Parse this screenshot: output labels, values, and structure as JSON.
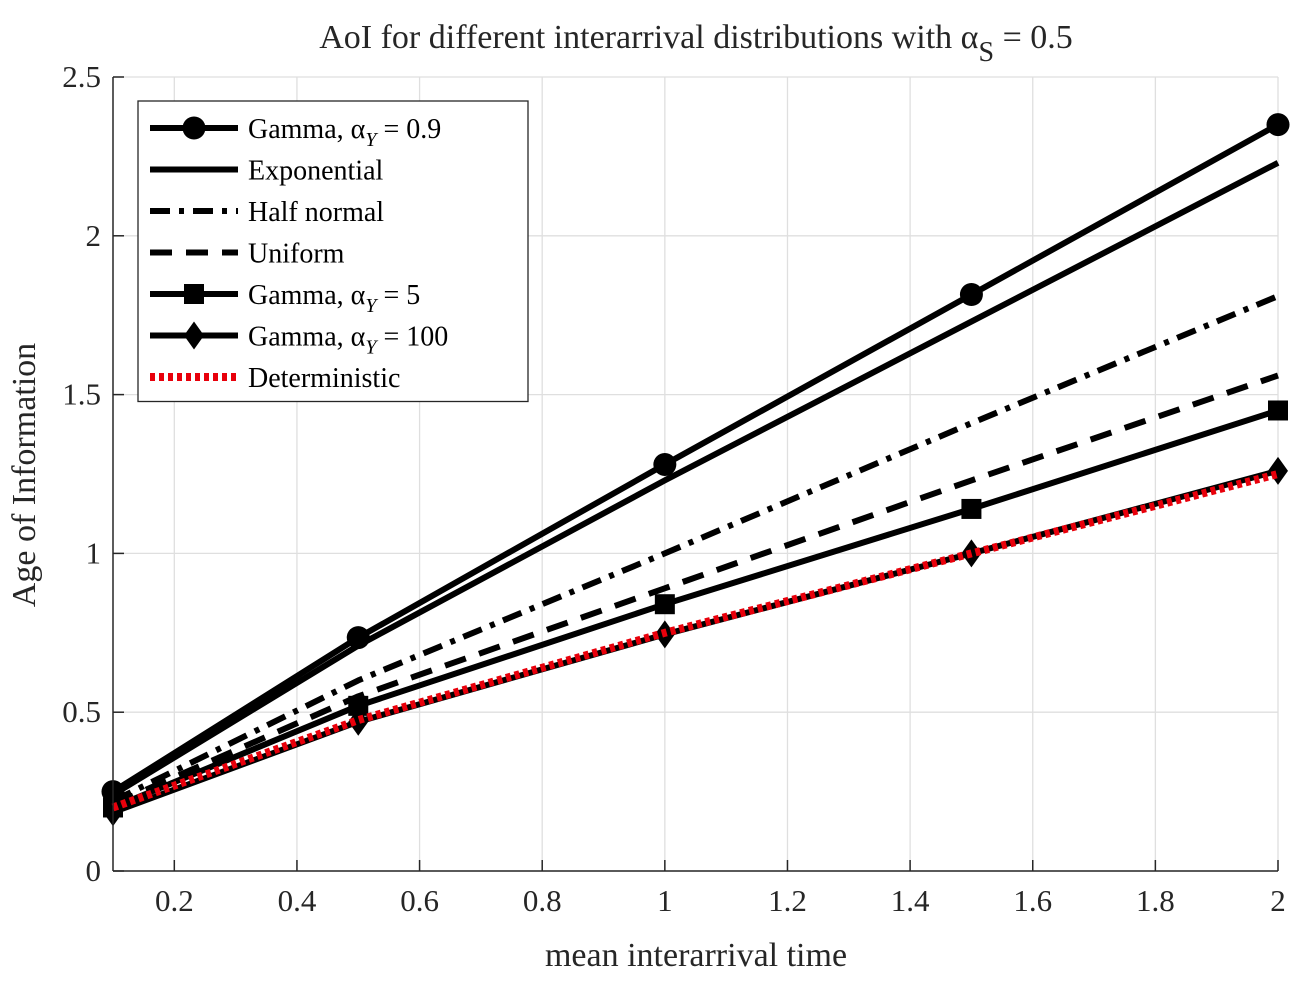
{
  "chart_data": {
    "type": "line",
    "title": "AoI for different interarrival distributions with α",
    "title_subscript": "S",
    "title_suffix": " = 0.5",
    "xlabel": "mean interarrival time",
    "ylabel": "Age of Information",
    "xlim": [
      0.1,
      2
    ],
    "ylim": [
      0,
      2.5
    ],
    "xticks": [
      0.2,
      0.4,
      0.6,
      0.8,
      1,
      1.2,
      1.4,
      1.6,
      1.8,
      2
    ],
    "xtick_labels": [
      "0.2",
      "0.4",
      "0.6",
      "0.8",
      "1",
      "1.2",
      "1.4",
      "1.6",
      "1.8",
      "2"
    ],
    "yticks": [
      0,
      0.5,
      1,
      1.5,
      2,
      2.5
    ],
    "ytick_labels": [
      "0",
      "0.5",
      "1",
      "1.5",
      "2",
      "2.5"
    ],
    "grid": true,
    "legend_position": "top-left",
    "x": [
      0.1,
      0.5,
      1,
      1.5,
      2
    ],
    "series": [
      {
        "name": "Gamma, α",
        "name_sub": "Y",
        "name_suffix": " = 0.9",
        "values": [
          0.25,
          0.735,
          1.28,
          1.815,
          2.35
        ],
        "style": "solid",
        "marker": "circle",
        "color": "#000000"
      },
      {
        "name": "Exponential",
        "values": [
          0.24,
          0.71,
          1.23,
          1.73,
          2.23
        ],
        "style": "solid",
        "marker": "none",
        "color": "#000000"
      },
      {
        "name": "Half normal",
        "values": [
          0.22,
          0.6,
          1.0,
          1.41,
          1.81
        ],
        "style": "dashdot",
        "marker": "none",
        "color": "#000000"
      },
      {
        "name": "Uniform",
        "values": [
          0.21,
          0.55,
          0.89,
          1.23,
          1.56
        ],
        "style": "dashed",
        "marker": "none",
        "color": "#000000"
      },
      {
        "name": "Gamma, α",
        "name_sub": "Y",
        "name_suffix": " = 5",
        "values": [
          0.2,
          0.52,
          0.84,
          1.14,
          1.45
        ],
        "style": "solid",
        "marker": "square",
        "color": "#000000"
      },
      {
        "name": "Gamma, α",
        "name_sub": "Y",
        "name_suffix": " = 100",
        "values": [
          0.185,
          0.47,
          0.745,
          1.0,
          1.26
        ],
        "style": "solid",
        "marker": "diamond",
        "color": "#000000"
      },
      {
        "name": "Deterministic",
        "values": [
          0.2,
          0.475,
          0.75,
          1.0,
          1.25
        ],
        "style": "dotted",
        "marker": "none",
        "color": "#e8000b"
      }
    ]
  }
}
